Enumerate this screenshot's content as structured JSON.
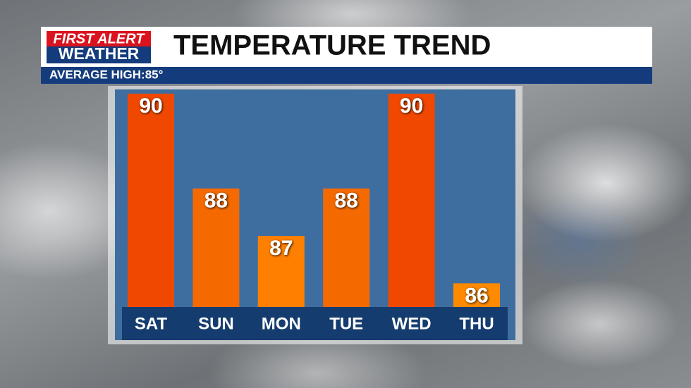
{
  "logo": {
    "line1": "FIRST ALERT",
    "line2": "WEATHER"
  },
  "chart_data": {
    "type": "bar",
    "title": "TEMPERATURE TREND",
    "subtitle": "AVERAGE HIGH:85°",
    "categories": [
      "SAT",
      "SUN",
      "MON",
      "TUE",
      "WED",
      "THU"
    ],
    "values": [
      90,
      88,
      87,
      88,
      90,
      86
    ],
    "colors": [
      "#f04800",
      "#f56a00",
      "#ff8000",
      "#f56a00",
      "#f04800",
      "#ff8a00"
    ],
    "ylim": [
      85.5,
      90
    ]
  }
}
